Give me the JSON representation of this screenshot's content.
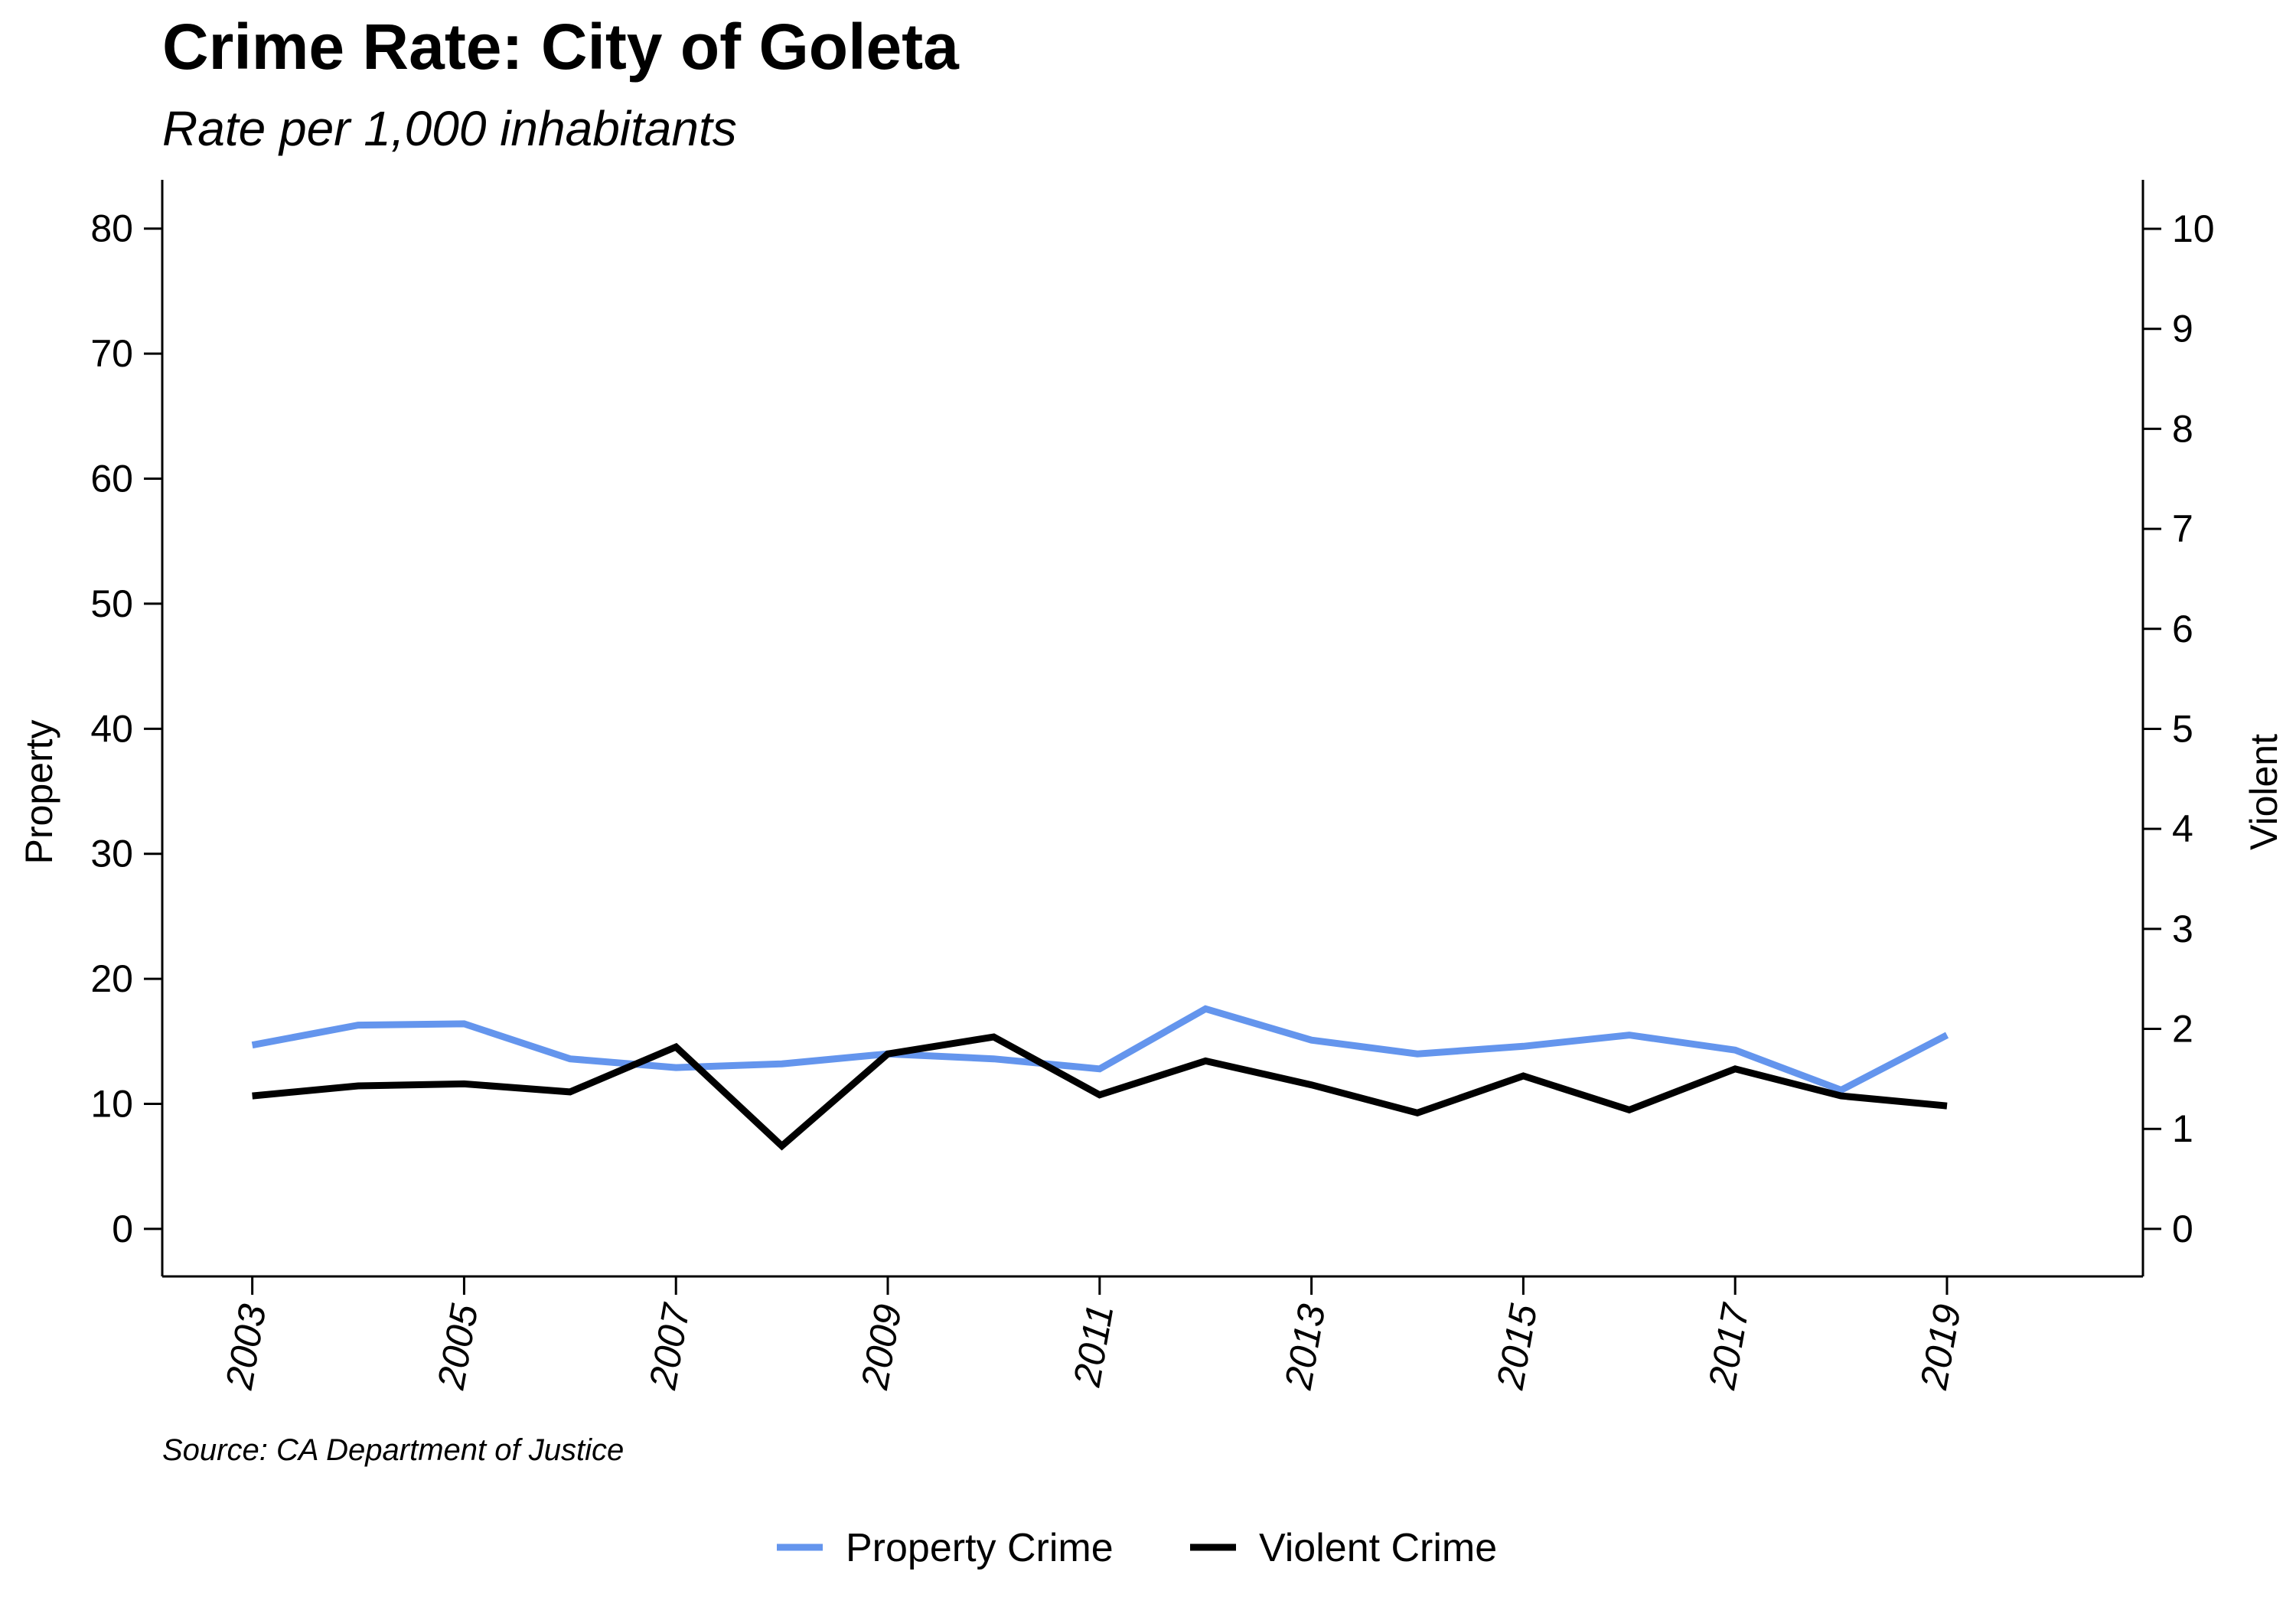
{
  "chart_data": {
    "type": "line",
    "title": "Crime Rate: City of Goleta",
    "subtitle": "Rate per 1,000 inhabitants",
    "ylabel_left": "Property",
    "ylabel_right": "Violent",
    "source": "Source: CA Department of Justice",
    "x": [
      2003,
      2004,
      2005,
      2006,
      2007,
      2008,
      2009,
      2010,
      2011,
      2012,
      2013,
      2014,
      2015,
      2016,
      2017,
      2018,
      2019
    ],
    "x_ticks": [
      "2003",
      "2005",
      "2007",
      "2009",
      "2011",
      "2013",
      "2015",
      "2017",
      "2019"
    ],
    "y_left_ticks": [
      "0",
      "10",
      "20",
      "30",
      "40",
      "50",
      "60",
      "70",
      "80"
    ],
    "y_right_ticks": [
      "0",
      "1",
      "2",
      "3",
      "4",
      "5",
      "6",
      "7",
      "8",
      "9",
      "10"
    ],
    "ylim_left": [
      -3.8,
      83.9
    ],
    "ylim_right": [
      -0.475,
      10.49
    ],
    "xlim": [
      2002.15,
      2020.85
    ],
    "grid": false,
    "legend_position": "bottom",
    "series": [
      {
        "name": "Property Crime",
        "axis": "left",
        "color": "#6495ED",
        "values": [
          14.7,
          16.3,
          16.4,
          13.6,
          12.9,
          13.2,
          14.0,
          13.6,
          12.8,
          17.6,
          15.1,
          14.0,
          14.6,
          15.5,
          14.3,
          11.1,
          15.5
        ]
      },
      {
        "name": "Violent Crime",
        "axis": "right",
        "color": "#000000",
        "values": [
          1.33,
          1.43,
          1.45,
          1.37,
          1.82,
          0.83,
          1.75,
          1.92,
          1.34,
          1.68,
          1.44,
          1.16,
          1.53,
          1.19,
          1.6,
          1.33,
          1.23
        ]
      }
    ]
  }
}
